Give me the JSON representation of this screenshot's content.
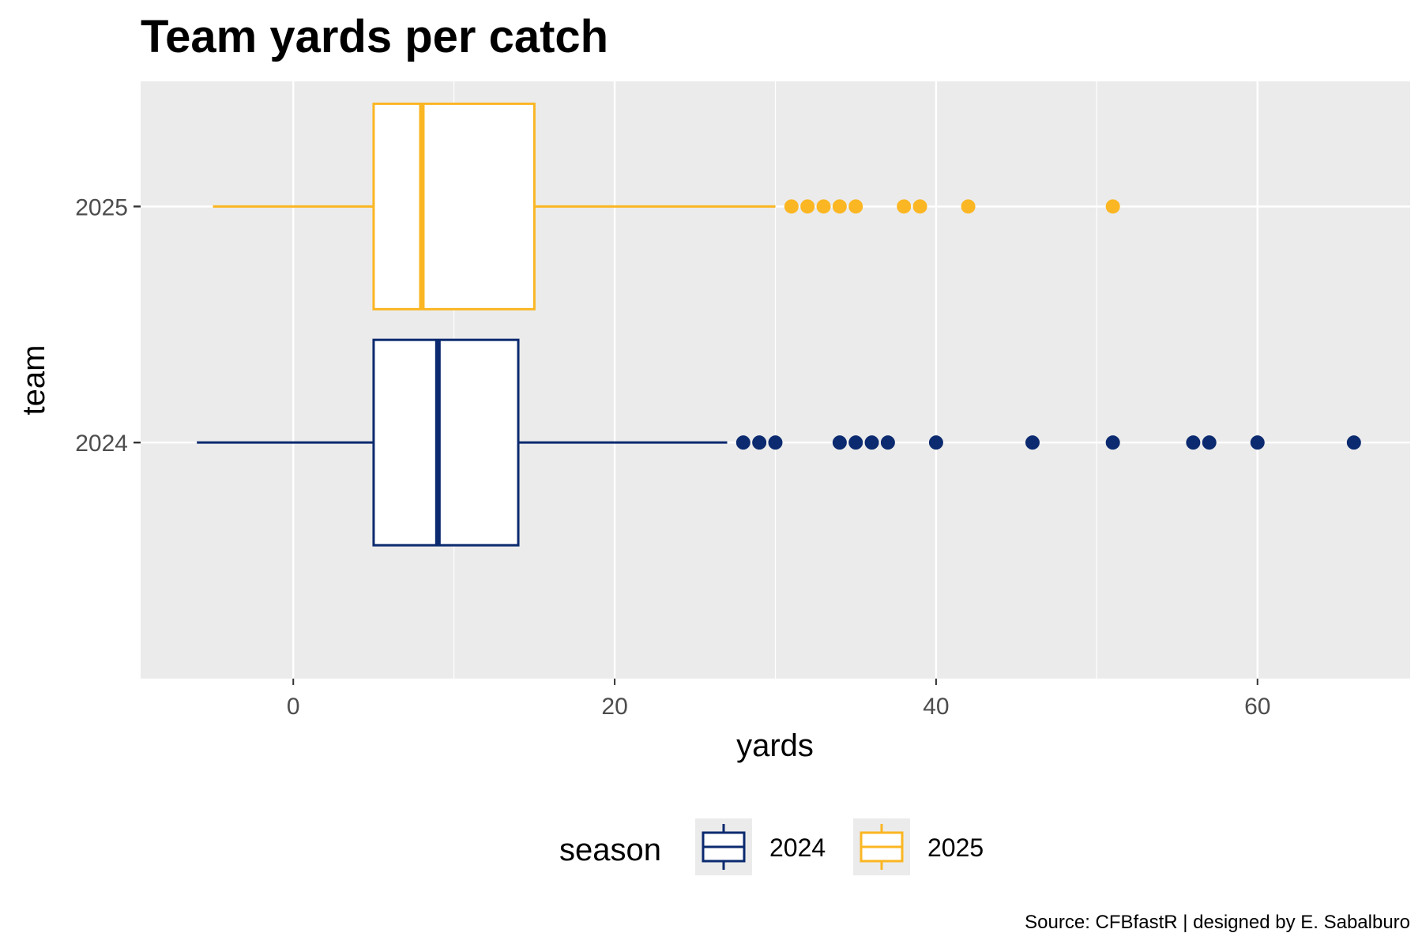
{
  "chart_data": {
    "type": "boxplot",
    "orientation": "horizontal",
    "title": "Team yards per catch",
    "xlabel": "yards",
    "ylabel": "team",
    "xlim": [
      -9.5,
      69.5
    ],
    "x_ticks": [
      0,
      20,
      40,
      60
    ],
    "categories": [
      "2024",
      "2025"
    ],
    "grid": true,
    "legend": {
      "title": "season",
      "position": "bottom",
      "entries": [
        {
          "label": "2024",
          "color": "#0b2a6f"
        },
        {
          "label": "2025",
          "color": "#fbb623"
        }
      ]
    },
    "series": [
      {
        "name": "2024",
        "category": "2024",
        "color": "#0b2a6f",
        "whisker_low": -6,
        "q1": 5,
        "median": 9,
        "q3": 14,
        "whisker_high": 27,
        "outliers": [
          28,
          29,
          30,
          34,
          35,
          36,
          37,
          40,
          46,
          51,
          56,
          57,
          60,
          66
        ]
      },
      {
        "name": "2025",
        "category": "2025",
        "color": "#fbb623",
        "whisker_low": -5,
        "q1": 5,
        "median": 8,
        "q3": 15,
        "whisker_high": 30,
        "outliers": [
          31,
          32,
          33,
          34,
          35,
          38,
          39,
          42,
          51
        ]
      }
    ],
    "caption": "Source: CFBfastR | designed by E. Sabalburo"
  },
  "colors": {
    "panel_background": "#ebebeb",
    "grid": "#ffffff"
  }
}
